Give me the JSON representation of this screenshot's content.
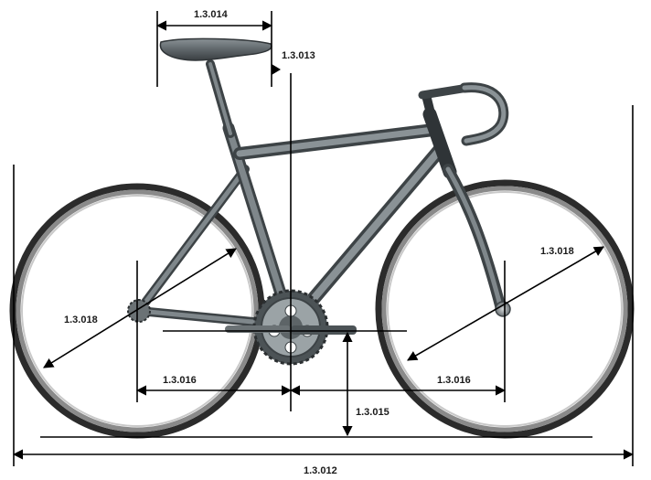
{
  "diagram": {
    "labels": {
      "saddle_length": "1.3.014",
      "saddle_setback": "1.3.013",
      "wheel_diameter_rear": "1.3.018",
      "wheel_diameter_front": "1.3.018",
      "rear_center": "1.3.016",
      "front_center": "1.3.016",
      "bb_height": "1.3.015",
      "overall_length": "1.3.012"
    }
  }
}
